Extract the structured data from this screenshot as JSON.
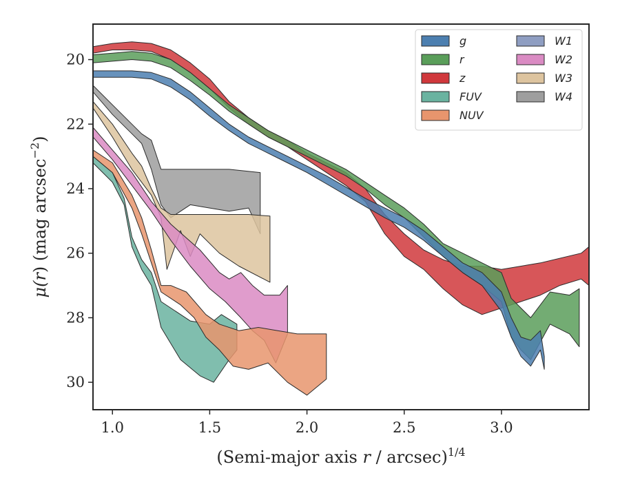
{
  "chart_data": {
    "type": "area",
    "xlabel": "(Semi-major axis r / arcsec)^{1/4}",
    "xlabel_parts": {
      "main": "(Semi-major axis ",
      "var": "r",
      "rest": " / arcsec)",
      "sup": "1/4"
    },
    "ylabel": "μ(r) (mag arcsec^{-2})",
    "ylabel_parts": {
      "mu": "μ(",
      "var": "r",
      "mid": ") (mag arcsec",
      "sup": "−2",
      "end": ")"
    },
    "xlim": [
      0.9,
      3.45
    ],
    "ylim": [
      30.85,
      18.9
    ],
    "y_inverted": true,
    "xticks": [
      1.0,
      1.5,
      2.0,
      2.5,
      3.0
    ],
    "xtick_labels": [
      "1.0",
      "1.5",
      "2.0",
      "2.5",
      "3.0"
    ],
    "yticks": [
      20,
      22,
      24,
      26,
      28,
      30
    ],
    "ytick_labels": [
      "20",
      "22",
      "24",
      "26",
      "28",
      "30"
    ],
    "grid": false,
    "legend_position": "top-right",
    "legend_columns": 2,
    "series": [
      {
        "name": "W4",
        "color": "#9e9e9e",
        "upper": [
          [
            0.9,
            20.8
          ],
          [
            1.0,
            21.4
          ],
          [
            1.1,
            22.0
          ],
          [
            1.15,
            22.3
          ],
          [
            1.2,
            22.5
          ],
          [
            1.25,
            23.4
          ],
          [
            1.4,
            23.4
          ],
          [
            1.6,
            23.4
          ],
          [
            1.76,
            23.5
          ]
        ],
        "lower": [
          [
            0.9,
            21.0
          ],
          [
            1.0,
            21.7
          ],
          [
            1.1,
            22.3
          ],
          [
            1.15,
            22.6
          ],
          [
            1.2,
            23.4
          ],
          [
            1.25,
            24.5
          ],
          [
            1.3,
            24.9
          ],
          [
            1.4,
            24.5
          ],
          [
            1.5,
            24.6
          ],
          [
            1.6,
            24.7
          ],
          [
            1.7,
            24.6
          ],
          [
            1.76,
            25.4
          ]
        ]
      },
      {
        "name": "W3",
        "color": "#ddc49f",
        "upper": [
          [
            0.9,
            21.3
          ],
          [
            1.0,
            22.0
          ],
          [
            1.1,
            22.9
          ],
          [
            1.15,
            23.3
          ],
          [
            1.2,
            24.0
          ],
          [
            1.25,
            24.6
          ],
          [
            1.3,
            24.8
          ],
          [
            1.5,
            24.8
          ],
          [
            1.7,
            24.8
          ],
          [
            1.81,
            24.85
          ]
        ],
        "lower": [
          [
            0.9,
            21.5
          ],
          [
            1.0,
            22.4
          ],
          [
            1.1,
            23.4
          ],
          [
            1.2,
            24.2
          ],
          [
            1.25,
            24.9
          ],
          [
            1.28,
            26.5
          ],
          [
            1.35,
            25.3
          ],
          [
            1.4,
            26.1
          ],
          [
            1.45,
            25.4
          ],
          [
            1.55,
            26.0
          ],
          [
            1.65,
            26.4
          ],
          [
            1.81,
            26.9
          ]
        ]
      },
      {
        "name": "W2",
        "color": "#da8bc3",
        "upper": [
          [
            0.9,
            22.1
          ],
          [
            1.0,
            22.8
          ],
          [
            1.1,
            23.5
          ],
          [
            1.2,
            24.4
          ],
          [
            1.3,
            25.1
          ],
          [
            1.45,
            25.9
          ],
          [
            1.55,
            26.6
          ],
          [
            1.6,
            26.8
          ],
          [
            1.66,
            26.6
          ],
          [
            1.72,
            27.0
          ],
          [
            1.78,
            27.3
          ],
          [
            1.86,
            27.3
          ],
          [
            1.9,
            27.0
          ]
        ],
        "lower": [
          [
            0.9,
            22.4
          ],
          [
            1.0,
            23.1
          ],
          [
            1.1,
            23.9
          ],
          [
            1.2,
            24.7
          ],
          [
            1.3,
            25.6
          ],
          [
            1.4,
            26.4
          ],
          [
            1.5,
            27.1
          ],
          [
            1.58,
            27.5
          ],
          [
            1.66,
            28.0
          ],
          [
            1.72,
            28.4
          ],
          [
            1.78,
            28.7
          ],
          [
            1.84,
            29.4
          ],
          [
            1.9,
            28.5
          ]
        ]
      },
      {
        "name": "FUV",
        "color": "#6ab3a0",
        "upper": [
          [
            0.9,
            23.0
          ],
          [
            1.0,
            23.5
          ],
          [
            1.06,
            24.3
          ],
          [
            1.1,
            25.5
          ],
          [
            1.15,
            26.2
          ],
          [
            1.2,
            26.6
          ],
          [
            1.25,
            27.5
          ],
          [
            1.4,
            28.1
          ],
          [
            1.5,
            28.2
          ],
          [
            1.56,
            27.9
          ],
          [
            1.64,
            28.2
          ]
        ],
        "lower": [
          [
            0.9,
            23.2
          ],
          [
            1.0,
            23.8
          ],
          [
            1.06,
            24.5
          ],
          [
            1.1,
            25.8
          ],
          [
            1.15,
            26.5
          ],
          [
            1.2,
            27.0
          ],
          [
            1.25,
            28.3
          ],
          [
            1.35,
            29.3
          ],
          [
            1.45,
            29.8
          ],
          [
            1.52,
            30.0
          ],
          [
            1.6,
            29.3
          ],
          [
            1.64,
            29.0
          ]
        ]
      },
      {
        "name": "NUV",
        "color": "#e8956d",
        "upper": [
          [
            0.9,
            22.8
          ],
          [
            1.0,
            23.2
          ],
          [
            1.1,
            24.2
          ],
          [
            1.15,
            24.9
          ],
          [
            1.2,
            25.9
          ],
          [
            1.25,
            27.0
          ],
          [
            1.3,
            27.0
          ],
          [
            1.38,
            27.2
          ],
          [
            1.48,
            27.9
          ],
          [
            1.55,
            28.2
          ],
          [
            1.65,
            28.4
          ],
          [
            1.75,
            28.3
          ],
          [
            1.85,
            28.4
          ],
          [
            1.95,
            28.5
          ],
          [
            2.1,
            28.5
          ]
        ],
        "lower": [
          [
            0.9,
            23.0
          ],
          [
            1.0,
            23.5
          ],
          [
            1.1,
            24.6
          ],
          [
            1.15,
            25.4
          ],
          [
            1.2,
            26.3
          ],
          [
            1.25,
            27.2
          ],
          [
            1.35,
            27.6
          ],
          [
            1.42,
            28.0
          ],
          [
            1.48,
            28.6
          ],
          [
            1.55,
            29.0
          ],
          [
            1.62,
            29.5
          ],
          [
            1.7,
            29.6
          ],
          [
            1.8,
            29.4
          ],
          [
            1.9,
            30.0
          ],
          [
            2.0,
            30.4
          ],
          [
            2.1,
            29.9
          ]
        ]
      },
      {
        "name": "z",
        "color": "#d0383c",
        "upper": [
          [
            0.9,
            19.6
          ],
          [
            1.0,
            19.5
          ],
          [
            1.1,
            19.45
          ],
          [
            1.2,
            19.5
          ],
          [
            1.3,
            19.7
          ],
          [
            1.4,
            20.1
          ],
          [
            1.5,
            20.6
          ],
          [
            1.6,
            21.3
          ],
          [
            1.7,
            21.8
          ],
          [
            1.8,
            22.2
          ],
          [
            1.9,
            22.5
          ],
          [
            2.0,
            22.9
          ],
          [
            2.1,
            23.2
          ],
          [
            2.2,
            23.5
          ],
          [
            2.3,
            24.0
          ],
          [
            2.4,
            24.8
          ],
          [
            2.5,
            25.4
          ],
          [
            2.6,
            25.9
          ],
          [
            2.7,
            26.2
          ],
          [
            2.8,
            26.4
          ],
          [
            2.9,
            26.4
          ],
          [
            3.0,
            26.5
          ],
          [
            3.2,
            26.3
          ],
          [
            3.41,
            26.0
          ],
          [
            3.45,
            25.8
          ]
        ],
        "lower": [
          [
            0.9,
            19.8
          ],
          [
            1.0,
            19.7
          ],
          [
            1.1,
            19.7
          ],
          [
            1.2,
            19.75
          ],
          [
            1.3,
            20.0
          ],
          [
            1.4,
            20.4
          ],
          [
            1.5,
            20.9
          ],
          [
            1.6,
            21.5
          ],
          [
            1.7,
            22.0
          ],
          [
            1.8,
            22.4
          ],
          [
            1.9,
            22.7
          ],
          [
            2.0,
            23.1
          ],
          [
            2.1,
            23.5
          ],
          [
            2.2,
            23.9
          ],
          [
            2.3,
            24.4
          ],
          [
            2.4,
            25.4
          ],
          [
            2.5,
            26.1
          ],
          [
            2.6,
            26.5
          ],
          [
            2.7,
            27.1
          ],
          [
            2.8,
            27.6
          ],
          [
            2.9,
            27.9
          ],
          [
            3.0,
            27.7
          ],
          [
            3.1,
            27.5
          ],
          [
            3.2,
            27.3
          ],
          [
            3.3,
            27.0
          ],
          [
            3.41,
            26.8
          ],
          [
            3.45,
            27.0
          ]
        ]
      },
      {
        "name": "r",
        "color": "#5a9e5a",
        "upper": [
          [
            0.9,
            19.85
          ],
          [
            1.0,
            19.8
          ],
          [
            1.1,
            19.75
          ],
          [
            1.2,
            19.8
          ],
          [
            1.3,
            20.0
          ],
          [
            1.4,
            20.4
          ],
          [
            1.5,
            20.9
          ],
          [
            1.6,
            21.4
          ],
          [
            1.7,
            21.8
          ],
          [
            1.8,
            22.2
          ],
          [
            1.9,
            22.5
          ],
          [
            2.0,
            22.8
          ],
          [
            2.1,
            23.1
          ],
          [
            2.2,
            23.4
          ],
          [
            2.3,
            23.8
          ],
          [
            2.4,
            24.2
          ],
          [
            2.5,
            24.6
          ],
          [
            2.6,
            25.1
          ],
          [
            2.7,
            25.7
          ],
          [
            2.8,
            26.0
          ],
          [
            2.9,
            26.3
          ],
          [
            3.0,
            26.6
          ],
          [
            3.05,
            27.4
          ],
          [
            3.15,
            28.0
          ],
          [
            3.25,
            27.2
          ],
          [
            3.35,
            27.3
          ],
          [
            3.4,
            27.1
          ]
        ],
        "lower": [
          [
            0.9,
            20.1
          ],
          [
            1.0,
            20.05
          ],
          [
            1.1,
            20.0
          ],
          [
            1.2,
            20.05
          ],
          [
            1.3,
            20.25
          ],
          [
            1.4,
            20.65
          ],
          [
            1.5,
            21.1
          ],
          [
            1.6,
            21.6
          ],
          [
            1.7,
            22.0
          ],
          [
            1.8,
            22.4
          ],
          [
            1.9,
            22.7
          ],
          [
            2.0,
            23.0
          ],
          [
            2.1,
            23.3
          ],
          [
            2.2,
            23.6
          ],
          [
            2.3,
            24.0
          ],
          [
            2.4,
            24.5
          ],
          [
            2.5,
            24.9
          ],
          [
            2.6,
            25.5
          ],
          [
            2.7,
            26.1
          ],
          [
            2.8,
            26.6
          ],
          [
            2.9,
            27.0
          ],
          [
            3.0,
            27.5
          ],
          [
            3.05,
            28.6
          ],
          [
            3.1,
            29.0
          ],
          [
            3.15,
            29.3
          ],
          [
            3.25,
            28.2
          ],
          [
            3.35,
            28.5
          ],
          [
            3.4,
            28.9
          ]
        ]
      },
      {
        "name": "g",
        "color": "#4c7fb0",
        "upper": [
          [
            0.9,
            20.35
          ],
          [
            1.0,
            20.35
          ],
          [
            1.1,
            20.35
          ],
          [
            1.2,
            20.4
          ],
          [
            1.3,
            20.6
          ],
          [
            1.4,
            21.0
          ],
          [
            1.5,
            21.5
          ],
          [
            1.6,
            22.0
          ],
          [
            1.7,
            22.4
          ],
          [
            1.8,
            22.7
          ],
          [
            1.9,
            23.0
          ],
          [
            2.0,
            23.3
          ],
          [
            2.1,
            23.6
          ],
          [
            2.2,
            23.95
          ],
          [
            2.3,
            24.3
          ],
          [
            2.4,
            24.6
          ],
          [
            2.5,
            24.9
          ],
          [
            2.6,
            25.3
          ],
          [
            2.7,
            25.8
          ],
          [
            2.8,
            26.3
          ],
          [
            2.9,
            26.6
          ],
          [
            3.0,
            27.2
          ],
          [
            3.05,
            28.0
          ],
          [
            3.1,
            28.6
          ],
          [
            3.15,
            28.7
          ],
          [
            3.2,
            28.4
          ],
          [
            3.22,
            29.2
          ]
        ],
        "lower": [
          [
            0.9,
            20.55
          ],
          [
            1.0,
            20.55
          ],
          [
            1.1,
            20.55
          ],
          [
            1.2,
            20.6
          ],
          [
            1.3,
            20.85
          ],
          [
            1.4,
            21.25
          ],
          [
            1.5,
            21.75
          ],
          [
            1.6,
            22.2
          ],
          [
            1.7,
            22.6
          ],
          [
            1.8,
            22.9
          ],
          [
            1.9,
            23.2
          ],
          [
            2.0,
            23.5
          ],
          [
            2.1,
            23.85
          ],
          [
            2.2,
            24.2
          ],
          [
            2.3,
            24.55
          ],
          [
            2.4,
            24.9
          ],
          [
            2.5,
            25.2
          ],
          [
            2.6,
            25.6
          ],
          [
            2.7,
            26.1
          ],
          [
            2.8,
            26.6
          ],
          [
            2.9,
            27.0
          ],
          [
            3.0,
            27.8
          ],
          [
            3.05,
            28.6
          ],
          [
            3.1,
            29.2
          ],
          [
            3.15,
            29.5
          ],
          [
            3.2,
            29.0
          ],
          [
            3.22,
            29.6
          ]
        ]
      }
    ],
    "legend_entries": [
      {
        "label": "g",
        "color": "#4c7fb0"
      },
      {
        "label": "r",
        "color": "#5a9e5a"
      },
      {
        "label": "z",
        "color": "#d0383c"
      },
      {
        "label": "FUV",
        "color": "#6ab3a0"
      },
      {
        "label": "NUV",
        "color": "#e8956d"
      },
      {
        "label": "W1",
        "color": "#8f9ec2"
      },
      {
        "label": "W2",
        "color": "#da8bc3"
      },
      {
        "label": "W3",
        "color": "#ddc49f"
      },
      {
        "label": "W4",
        "color": "#9e9e9e"
      }
    ]
  }
}
